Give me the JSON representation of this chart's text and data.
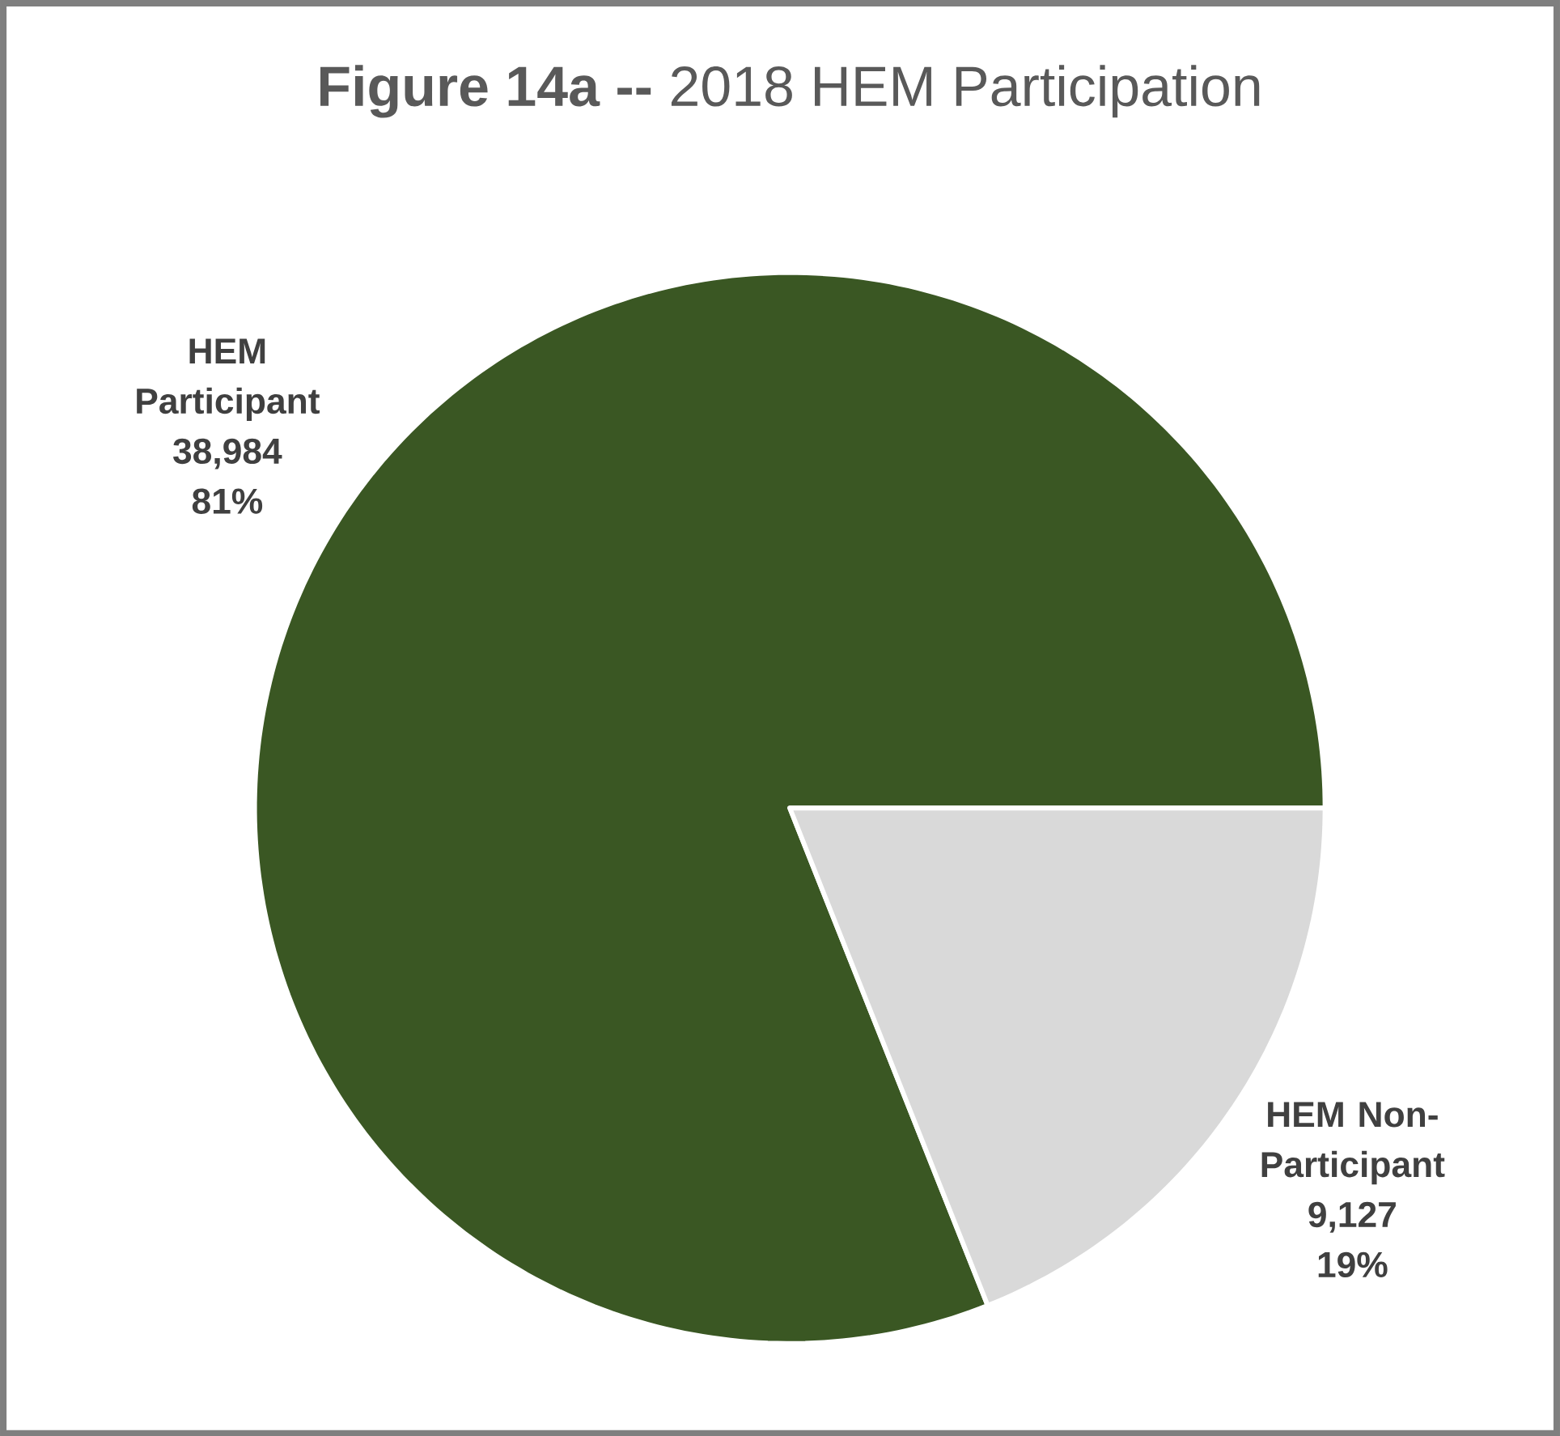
{
  "chart_data": {
    "type": "pie",
    "title": "**Figure 14a --** 2018 HEM Participation",
    "categories": [
      "HEM Participant",
      "HEM Non-Participant"
    ],
    "values": [
      38984,
      9127
    ],
    "colors": [
      "#3a5723",
      "#d9d9d9"
    ],
    "value_labels": [
      "38,984",
      "9,127"
    ],
    "annotations": [
      "81%",
      "19%"
    ]
  }
}
